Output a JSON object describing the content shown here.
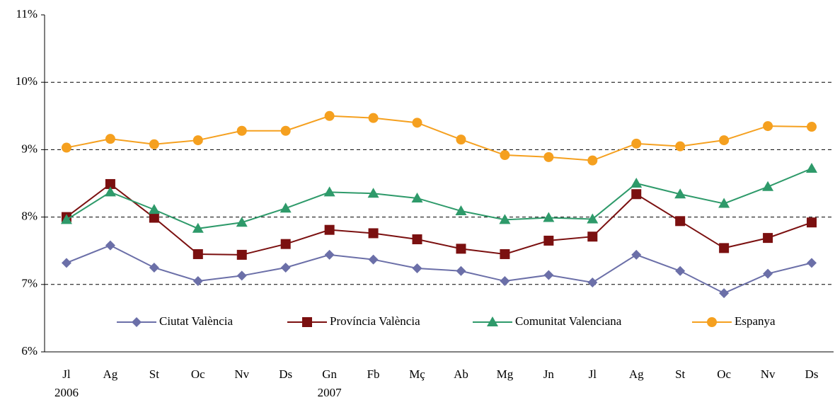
{
  "chart_data": {
    "type": "line",
    "categories": [
      "Jl",
      "Ag",
      "St",
      "Oc",
      "Nv",
      "Ds",
      "Gn",
      "Fb",
      "Mç",
      "Ab",
      "Mg",
      "Jn",
      "Jl",
      "Ag",
      "St",
      "Oc",
      "Nv",
      "Ds"
    ],
    "years": [
      "2006",
      null,
      null,
      null,
      null,
      null,
      "2007",
      null,
      null,
      null,
      null,
      null,
      null,
      null,
      null,
      null,
      null,
      null
    ],
    "series": [
      {
        "name": "Ciutat València",
        "color": "#6b6fa8",
        "marker": "diamond",
        "values": [
          7.32,
          7.58,
          7.25,
          7.05,
          7.13,
          7.25,
          7.44,
          7.37,
          7.24,
          7.2,
          7.05,
          7.14,
          7.03,
          7.44,
          7.2,
          6.87,
          7.16,
          7.32
        ]
      },
      {
        "name": "Província València",
        "color": "#7b1010",
        "marker": "square",
        "values": [
          8.0,
          8.49,
          7.99,
          7.45,
          7.44,
          7.6,
          7.81,
          7.76,
          7.67,
          7.53,
          7.45,
          7.65,
          7.71,
          8.34,
          7.94,
          7.54,
          7.69,
          7.92
        ]
      },
      {
        "name": "Comunitat Valenciana",
        "color": "#2e9a6a",
        "marker": "triangle",
        "values": [
          7.96,
          8.37,
          8.11,
          7.83,
          7.92,
          8.13,
          8.37,
          8.35,
          8.28,
          8.09,
          7.96,
          7.99,
          7.97,
          8.5,
          8.34,
          8.2,
          8.45,
          8.72
        ]
      },
      {
        "name": "Espanya",
        "color": "#f5a01f",
        "marker": "circle",
        "values": [
          9.03,
          9.16,
          9.08,
          9.14,
          9.28,
          9.28,
          9.5,
          9.47,
          9.4,
          9.15,
          8.92,
          8.89,
          8.84,
          9.09,
          9.05,
          9.14,
          9.35,
          9.34
        ]
      }
    ],
    "ylim": [
      6,
      11
    ],
    "yticks": [
      {
        "value": 6,
        "label": "6%"
      },
      {
        "value": 7,
        "label": "7%"
      },
      {
        "value": 8,
        "label": "8%"
      },
      {
        "value": 9,
        "label": "9%"
      },
      {
        "value": 10,
        "label": "10%"
      },
      {
        "value": 11,
        "label": "11%"
      }
    ],
    "grid": true,
    "legend": "bottom"
  }
}
